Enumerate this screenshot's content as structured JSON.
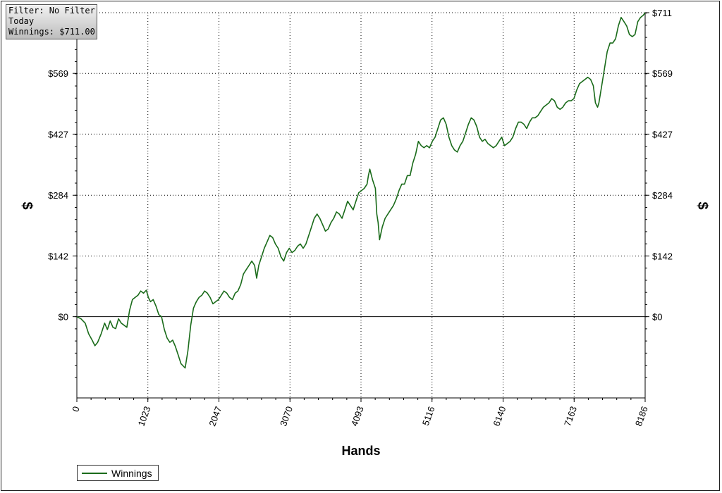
{
  "filter_box": {
    "line1": "Filter: No Filter",
    "line2": "Today",
    "line3": "Winnings: $711.00"
  },
  "legend": {
    "label": "Winnings",
    "color": "#1a6b1a"
  },
  "chart_data": {
    "type": "line",
    "xlabel": "Hands",
    "ylabel": "$",
    "xlim": [
      0,
      8186
    ],
    "ylim": [
      -190,
      711
    ],
    "x_ticks": [
      0,
      1023,
      2047,
      3070,
      4093,
      5116,
      6140,
      7163,
      8186
    ],
    "y_ticks": [
      {
        "value": 0,
        "label": "$0"
      },
      {
        "value": 142,
        "label": "$142"
      },
      {
        "value": 284,
        "label": "$284"
      },
      {
        "value": 427,
        "label": "$427"
      },
      {
        "value": 569,
        "label": "$569"
      },
      {
        "value": 711,
        "label": "$711"
      }
    ],
    "grid": true,
    "legend_position": "bottom-left",
    "series": [
      {
        "name": "Winnings",
        "color": "#1a6b1a",
        "points": [
          [
            0,
            0
          ],
          [
            60,
            -5
          ],
          [
            120,
            -15
          ],
          [
            170,
            -40
          ],
          [
            220,
            -55
          ],
          [
            260,
            -68
          ],
          [
            300,
            -60
          ],
          [
            350,
            -40
          ],
          [
            400,
            -15
          ],
          [
            440,
            -30
          ],
          [
            480,
            -10
          ],
          [
            520,
            -25
          ],
          [
            560,
            -28
          ],
          [
            600,
            -5
          ],
          [
            640,
            -15
          ],
          [
            680,
            -20
          ],
          [
            720,
            -25
          ],
          [
            760,
            15
          ],
          [
            800,
            40
          ],
          [
            840,
            45
          ],
          [
            880,
            50
          ],
          [
            920,
            60
          ],
          [
            960,
            55
          ],
          [
            1000,
            62
          ],
          [
            1030,
            45
          ],
          [
            1060,
            35
          ],
          [
            1100,
            40
          ],
          [
            1140,
            25
          ],
          [
            1180,
            5
          ],
          [
            1220,
            0
          ],
          [
            1260,
            -30
          ],
          [
            1300,
            -50
          ],
          [
            1340,
            -60
          ],
          [
            1380,
            -55
          ],
          [
            1420,
            -70
          ],
          [
            1460,
            -90
          ],
          [
            1500,
            -110
          ],
          [
            1560,
            -120
          ],
          [
            1600,
            -80
          ],
          [
            1640,
            -20
          ],
          [
            1680,
            20
          ],
          [
            1720,
            35
          ],
          [
            1760,
            45
          ],
          [
            1800,
            50
          ],
          [
            1840,
            60
          ],
          [
            1880,
            55
          ],
          [
            1920,
            45
          ],
          [
            1960,
            30
          ],
          [
            2000,
            35
          ],
          [
            2040,
            40
          ],
          [
            2080,
            50
          ],
          [
            2120,
            60
          ],
          [
            2160,
            55
          ],
          [
            2200,
            45
          ],
          [
            2240,
            40
          ],
          [
            2280,
            55
          ],
          [
            2320,
            60
          ],
          [
            2360,
            75
          ],
          [
            2400,
            100
          ],
          [
            2440,
            110
          ],
          [
            2480,
            120
          ],
          [
            2520,
            130
          ],
          [
            2560,
            120
          ],
          [
            2590,
            90
          ],
          [
            2620,
            120
          ],
          [
            2660,
            140
          ],
          [
            2700,
            160
          ],
          [
            2740,
            175
          ],
          [
            2780,
            190
          ],
          [
            2820,
            185
          ],
          [
            2860,
            170
          ],
          [
            2900,
            160
          ],
          [
            2940,
            140
          ],
          [
            2980,
            130
          ],
          [
            3020,
            150
          ],
          [
            3060,
            160
          ],
          [
            3100,
            150
          ],
          [
            3140,
            155
          ],
          [
            3180,
            165
          ],
          [
            3220,
            170
          ],
          [
            3260,
            160
          ],
          [
            3300,
            170
          ],
          [
            3340,
            190
          ],
          [
            3380,
            210
          ],
          [
            3420,
            230
          ],
          [
            3460,
            240
          ],
          [
            3500,
            230
          ],
          [
            3540,
            215
          ],
          [
            3580,
            200
          ],
          [
            3620,
            205
          ],
          [
            3660,
            220
          ],
          [
            3700,
            230
          ],
          [
            3740,
            245
          ],
          [
            3780,
            240
          ],
          [
            3820,
            230
          ],
          [
            3860,
            250
          ],
          [
            3900,
            270
          ],
          [
            3940,
            260
          ],
          [
            3980,
            250
          ],
          [
            4020,
            270
          ],
          [
            4060,
            290
          ],
          [
            4100,
            295
          ],
          [
            4140,
            300
          ],
          [
            4180,
            310
          ],
          [
            4200,
            330
          ],
          [
            4220,
            345
          ],
          [
            4260,
            320
          ],
          [
            4300,
            300
          ],
          [
            4320,
            240
          ],
          [
            4340,
            220
          ],
          [
            4360,
            180
          ],
          [
            4400,
            210
          ],
          [
            4440,
            230
          ],
          [
            4480,
            240
          ],
          [
            4520,
            250
          ],
          [
            4560,
            260
          ],
          [
            4600,
            275
          ],
          [
            4640,
            295
          ],
          [
            4680,
            310
          ],
          [
            4720,
            310
          ],
          [
            4760,
            330
          ],
          [
            4800,
            330
          ],
          [
            4840,
            360
          ],
          [
            4880,
            380
          ],
          [
            4920,
            410
          ],
          [
            4960,
            400
          ],
          [
            5000,
            395
          ],
          [
            5040,
            400
          ],
          [
            5080,
            395
          ],
          [
            5120,
            410
          ],
          [
            5160,
            420
          ],
          [
            5200,
            440
          ],
          [
            5240,
            460
          ],
          [
            5280,
            465
          ],
          [
            5320,
            450
          ],
          [
            5360,
            420
          ],
          [
            5400,
            400
          ],
          [
            5440,
            390
          ],
          [
            5480,
            385
          ],
          [
            5520,
            400
          ],
          [
            5560,
            410
          ],
          [
            5600,
            430
          ],
          [
            5640,
            450
          ],
          [
            5680,
            465
          ],
          [
            5720,
            460
          ],
          [
            5760,
            445
          ],
          [
            5800,
            420
          ],
          [
            5840,
            410
          ],
          [
            5880,
            415
          ],
          [
            5920,
            405
          ],
          [
            5960,
            400
          ],
          [
            6000,
            395
          ],
          [
            6040,
            400
          ],
          [
            6080,
            410
          ],
          [
            6120,
            420
          ],
          [
            6160,
            400
          ],
          [
            6200,
            405
          ],
          [
            6240,
            410
          ],
          [
            6280,
            420
          ],
          [
            6320,
            440
          ],
          [
            6360,
            455
          ],
          [
            6400,
            455
          ],
          [
            6440,
            450
          ],
          [
            6480,
            440
          ],
          [
            6520,
            455
          ],
          [
            6560,
            465
          ],
          [
            6600,
            465
          ],
          [
            6640,
            470
          ],
          [
            6680,
            480
          ],
          [
            6720,
            490
          ],
          [
            6760,
            495
          ],
          [
            6800,
            500
          ],
          [
            6840,
            510
          ],
          [
            6880,
            505
          ],
          [
            6920,
            490
          ],
          [
            6960,
            485
          ],
          [
            7000,
            490
          ],
          [
            7040,
            500
          ],
          [
            7080,
            505
          ],
          [
            7120,
            505
          ],
          [
            7160,
            510
          ],
          [
            7200,
            530
          ],
          [
            7240,
            545
          ],
          [
            7280,
            550
          ],
          [
            7320,
            555
          ],
          [
            7360,
            560
          ],
          [
            7400,
            555
          ],
          [
            7440,
            540
          ],
          [
            7470,
            500
          ],
          [
            7500,
            490
          ],
          [
            7520,
            500
          ],
          [
            7560,
            540
          ],
          [
            7600,
            580
          ],
          [
            7640,
            620
          ],
          [
            7680,
            640
          ],
          [
            7720,
            640
          ],
          [
            7760,
            650
          ],
          [
            7800,
            680
          ],
          [
            7840,
            700
          ],
          [
            7880,
            690
          ],
          [
            7920,
            680
          ],
          [
            7960,
            660
          ],
          [
            8000,
            655
          ],
          [
            8040,
            660
          ],
          [
            8080,
            690
          ],
          [
            8120,
            700
          ],
          [
            8160,
            705
          ],
          [
            8186,
            711
          ]
        ]
      }
    ]
  }
}
